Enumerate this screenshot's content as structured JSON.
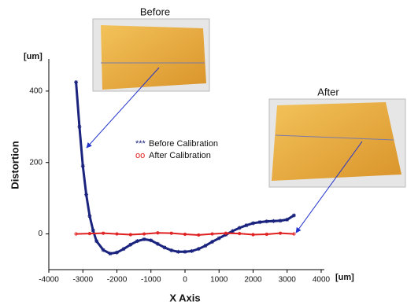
{
  "chart_data": {
    "type": "scatter",
    "xlabel": "X Axis",
    "ylabel": "Distortion",
    "x_unit": "[um]",
    "y_unit": "[um]",
    "xlim": [
      -4000,
      4000
    ],
    "ylim": [
      -100,
      490
    ],
    "xticks": [
      -4000,
      -3000,
      -2000,
      -1000,
      0,
      1000,
      2000,
      3000,
      4000
    ],
    "yticks": [
      0,
      200,
      400
    ],
    "series": [
      {
        "name": "Before Calibration",
        "marker_label": "***",
        "color": "#1a237e",
        "x": [
          -3200,
          -3100,
          -3000,
          -2900,
          -2800,
          -2700,
          -2600,
          -2400,
          -2200,
          -2000,
          -1800,
          -1600,
          -1400,
          -1200,
          -1000,
          -800,
          -600,
          -400,
          -200,
          0,
          200,
          400,
          600,
          800,
          1000,
          1200,
          1400,
          1600,
          1800,
          2000,
          2200,
          2400,
          2600,
          2800,
          3000,
          3200
        ],
        "values": [
          425,
          300,
          190,
          110,
          50,
          10,
          -20,
          -45,
          -55,
          -52,
          -42,
          -30,
          -20,
          -15,
          -18,
          -28,
          -38,
          -46,
          -50,
          -50,
          -48,
          -42,
          -33,
          -22,
          -12,
          -2,
          8,
          17,
          24,
          30,
          33,
          35,
          36,
          37,
          40,
          52
        ]
      },
      {
        "name": "After Calibration",
        "marker_label": "oo",
        "color": "#e02020",
        "x": [
          -3200,
          -2800,
          -2400,
          -2000,
          -1600,
          -1200,
          -800,
          -400,
          0,
          400,
          800,
          1200,
          1600,
          2000,
          2400,
          2800,
          3200
        ],
        "values": [
          0,
          1,
          2,
          0,
          -2,
          0,
          3,
          2,
          -1,
          -3,
          0,
          2,
          1,
          -2,
          -1,
          2,
          0
        ]
      }
    ]
  },
  "insets": [
    {
      "title": "Before"
    },
    {
      "title": "After"
    }
  ]
}
